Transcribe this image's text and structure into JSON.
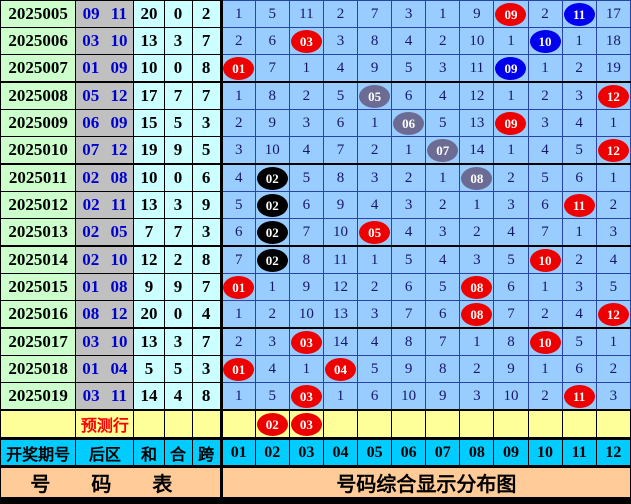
{
  "chart_data": {
    "type": "table",
    "title": "号码综合显示分布图",
    "left_title": "号 码 表",
    "columns": [
      "开奖期号",
      "后区",
      "和",
      "合",
      "跨",
      "01",
      "02",
      "03",
      "04",
      "05",
      "06",
      "07",
      "08",
      "09",
      "10",
      "11",
      "12"
    ],
    "marker_colors": {
      "red": "#ee0000",
      "blue": "#0000ee",
      "gray": "#6b6b93",
      "black": "#000000"
    },
    "rows": [
      {
        "period": "2025005",
        "back_area": "09 11",
        "sum": "20",
        "he": "0",
        "kua": "2",
        "cells": [
          "1",
          "5",
          "11",
          "2",
          "7",
          "3",
          "1",
          "9",
          {
            "v": "09",
            "mark": "red"
          },
          "2",
          {
            "v": "11",
            "mark": "blue"
          },
          "17"
        ]
      },
      {
        "period": "2025006",
        "back_area": "03 10",
        "sum": "13",
        "he": "3",
        "kua": "7",
        "cells": [
          "2",
          "6",
          {
            "v": "03",
            "mark": "red"
          },
          "3",
          "8",
          "4",
          "2",
          "10",
          "1",
          {
            "v": "10",
            "mark": "blue"
          },
          "1",
          "18"
        ]
      },
      {
        "period": "2025007",
        "back_area": "01 09",
        "sum": "10",
        "he": "0",
        "kua": "8",
        "cells": [
          {
            "v": "01",
            "mark": "red"
          },
          "7",
          "1",
          "4",
          "9",
          "5",
          "3",
          "11",
          {
            "v": "09",
            "mark": "blue"
          },
          "1",
          "2",
          "19"
        ]
      },
      {
        "period": "2025008",
        "back_area": "05 12",
        "sum": "17",
        "he": "7",
        "kua": "7",
        "cells": [
          "1",
          "8",
          "2",
          "5",
          {
            "v": "05",
            "mark": "gray"
          },
          "6",
          "4",
          "12",
          "1",
          "2",
          "3",
          {
            "v": "12",
            "mark": "red"
          }
        ]
      },
      {
        "period": "2025009",
        "back_area": "06 09",
        "sum": "15",
        "he": "5",
        "kua": "3",
        "cells": [
          "2",
          "9",
          "3",
          "6",
          "1",
          {
            "v": "06",
            "mark": "gray"
          },
          "5",
          "13",
          {
            "v": "09",
            "mark": "red"
          },
          "3",
          "4",
          "1"
        ]
      },
      {
        "period": "2025010",
        "back_area": "07 12",
        "sum": "19",
        "he": "9",
        "kua": "5",
        "cells": [
          "3",
          "10",
          "4",
          "7",
          "2",
          "1",
          {
            "v": "07",
            "mark": "gray"
          },
          "14",
          "1",
          "4",
          "5",
          {
            "v": "12",
            "mark": "red"
          }
        ]
      },
      {
        "period": "2025011",
        "back_area": "02 08",
        "sum": "10",
        "he": "0",
        "kua": "6",
        "cells": [
          "4",
          {
            "v": "02",
            "mark": "black"
          },
          "5",
          "8",
          "3",
          "2",
          "1",
          {
            "v": "08",
            "mark": "gray"
          },
          "2",
          "5",
          "6",
          "1"
        ]
      },
      {
        "period": "2025012",
        "back_area": "02 11",
        "sum": "13",
        "he": "3",
        "kua": "9",
        "cells": [
          "5",
          {
            "v": "02",
            "mark": "black"
          },
          "6",
          "9",
          "4",
          "3",
          "2",
          "1",
          "3",
          "6",
          {
            "v": "11",
            "mark": "red"
          },
          "2"
        ]
      },
      {
        "period": "2025013",
        "back_area": "02 05",
        "sum": "7",
        "he": "7",
        "kua": "3",
        "cells": [
          "6",
          {
            "v": "02",
            "mark": "black"
          },
          "7",
          "10",
          {
            "v": "05",
            "mark": "red"
          },
          "4",
          "3",
          "2",
          "4",
          "7",
          "1",
          "3"
        ]
      },
      {
        "period": "2025014",
        "back_area": "02 10",
        "sum": "12",
        "he": "2",
        "kua": "8",
        "cells": [
          "7",
          {
            "v": "02",
            "mark": "black"
          },
          "8",
          "11",
          "1",
          "5",
          "4",
          "3",
          "5",
          {
            "v": "10",
            "mark": "red"
          },
          "2",
          "4"
        ]
      },
      {
        "period": "2025015",
        "back_area": "01 08",
        "sum": "9",
        "he": "9",
        "kua": "7",
        "cells": [
          {
            "v": "01",
            "mark": "red"
          },
          "1",
          "9",
          "12",
          "2",
          "6",
          "5",
          {
            "v": "08",
            "mark": "red"
          },
          "6",
          "1",
          "3",
          "5"
        ]
      },
      {
        "period": "2025016",
        "back_area": "08 12",
        "sum": "20",
        "he": "0",
        "kua": "4",
        "cells": [
          "1",
          "2",
          "10",
          "13",
          "3",
          "7",
          "6",
          {
            "v": "08",
            "mark": "red"
          },
          "7",
          "2",
          "4",
          {
            "v": "12",
            "mark": "red"
          }
        ]
      },
      {
        "period": "2025017",
        "back_area": "03 10",
        "sum": "13",
        "he": "3",
        "kua": "7",
        "cells": [
          "2",
          "3",
          {
            "v": "03",
            "mark": "red"
          },
          "14",
          "4",
          "8",
          "7",
          "1",
          "8",
          {
            "v": "10",
            "mark": "red"
          },
          "5",
          "1"
        ]
      },
      {
        "period": "2025018",
        "back_area": "01 04",
        "sum": "5",
        "he": "5",
        "kua": "3",
        "cells": [
          {
            "v": "01",
            "mark": "red"
          },
          "4",
          "1",
          {
            "v": "04",
            "mark": "red"
          },
          "5",
          "9",
          "8",
          "2",
          "9",
          "1",
          "6",
          "2"
        ]
      },
      {
        "period": "2025019",
        "back_area": "03 11",
        "sum": "14",
        "he": "4",
        "kua": "8",
        "cells": [
          "1",
          "5",
          {
            "v": "03",
            "mark": "red"
          },
          "1",
          "6",
          "10",
          "9",
          "3",
          "10",
          "2",
          {
            "v": "11",
            "mark": "red"
          },
          "3"
        ]
      }
    ],
    "prediction_row": {
      "label": "预测行",
      "cells": [
        "",
        {
          "v": "02",
          "mark": "red"
        },
        {
          "v": "03",
          "mark": "red"
        },
        "",
        "",
        "",
        "",
        "",
        "",
        "",
        "",
        ""
      ]
    }
  },
  "colors": {
    "grid_cell_bg": "#99ccff",
    "period_col_bg": "#ccffcc",
    "back_area_col_bg": "#c0c0c0",
    "stat_col_bg": "#ccffff",
    "prediction_row_bg": "#ffff99",
    "header_row_bg": "#00ccff",
    "footer_row_bg": "#ffcc99",
    "back_area_text": "#0000cc",
    "prediction_label_text": "#ff0000",
    "grid_number_text": "#16166b"
  }
}
